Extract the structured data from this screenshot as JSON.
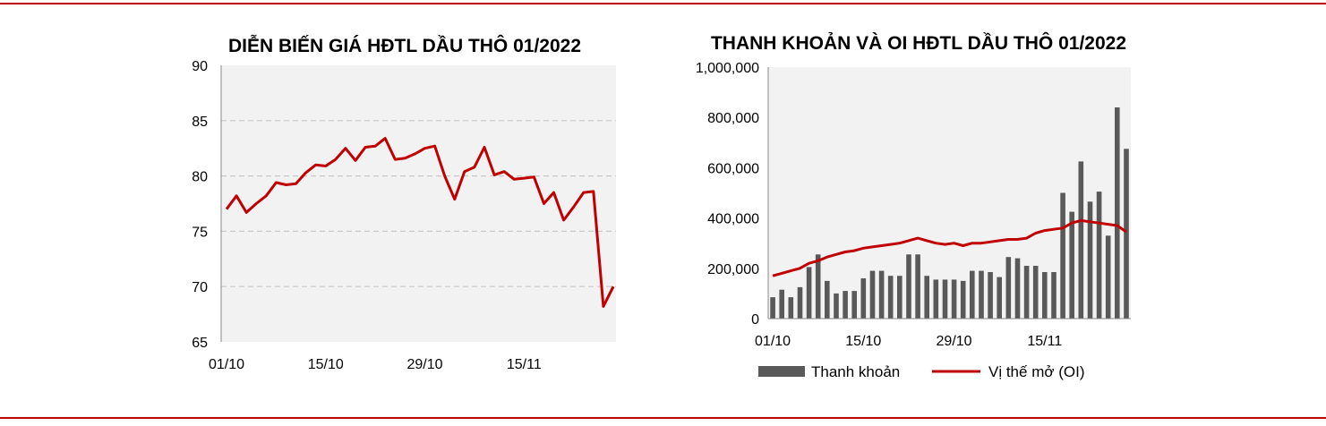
{
  "theme": {
    "accent": "#c00000",
    "bar_color": "#595959",
    "plot_bg": "#f2f2f2",
    "grid_color": "#c8c8c8"
  },
  "chart_data": [
    {
      "type": "line",
      "title": "DIỄN BIẾN GIÁ HĐTL DẦU THÔ 01/2022",
      "xlabel": "",
      "ylabel": "",
      "ylim": [
        65,
        90
      ],
      "y_ticks": [
        "90",
        "85",
        "80",
        "75",
        "70",
        "65"
      ],
      "x_tick_labels": [
        "01/10",
        "15/10",
        "29/10",
        "15/11"
      ],
      "grid": true,
      "series": [
        {
          "values": [
            77.0,
            78.2,
            76.7,
            77.5,
            78.2,
            79.4,
            79.2,
            79.3,
            80.3,
            81.0,
            80.9,
            81.5,
            82.5,
            81.4,
            82.6,
            82.7,
            83.4,
            81.5,
            81.6,
            82.0,
            82.5,
            82.7,
            80.0,
            77.9,
            80.4,
            80.8,
            82.6,
            80.1,
            80.4,
            79.7,
            79.8,
            79.9,
            77.5,
            78.5,
            76.0,
            77.2,
            78.5,
            78.6,
            68.2,
            70.0
          ]
        }
      ]
    },
    {
      "type": "bar",
      "title": "THANH KHOẢN VÀ OI HĐTL DẦU THÔ 01/2022",
      "xlabel": "",
      "ylabel": "",
      "ylim": [
        0,
        1000000
      ],
      "y_ticks": [
        "1,000,000",
        "800,000",
        "600,000",
        "400,000",
        "200,000",
        "0"
      ],
      "x_tick_labels": [
        "01/10",
        "15/10",
        "29/10",
        "15/11"
      ],
      "grid": false,
      "legend_position": "bottom",
      "series": [
        {
          "name": "Thanh khoản",
          "type": "bar",
          "values": [
            85000,
            115000,
            85000,
            125000,
            205000,
            255000,
            150000,
            100000,
            110000,
            110000,
            160000,
            190000,
            190000,
            170000,
            170000,
            255000,
            255000,
            170000,
            155000,
            155000,
            155000,
            150000,
            190000,
            190000,
            185000,
            165000,
            245000,
            240000,
            210000,
            210000,
            185000,
            185000,
            500000,
            425000,
            625000,
            465000,
            505000,
            330000,
            840000,
            675000
          ]
        },
        {
          "name": "Vị thế mở (OI)",
          "type": "line",
          "values": [
            170000,
            180000,
            190000,
            200000,
            220000,
            230000,
            245000,
            255000,
            265000,
            270000,
            280000,
            285000,
            290000,
            295000,
            300000,
            310000,
            320000,
            310000,
            300000,
            295000,
            300000,
            290000,
            300000,
            300000,
            305000,
            310000,
            315000,
            315000,
            320000,
            340000,
            350000,
            355000,
            360000,
            380000,
            390000,
            385000,
            380000,
            375000,
            370000,
            345000
          ]
        }
      ]
    }
  ]
}
